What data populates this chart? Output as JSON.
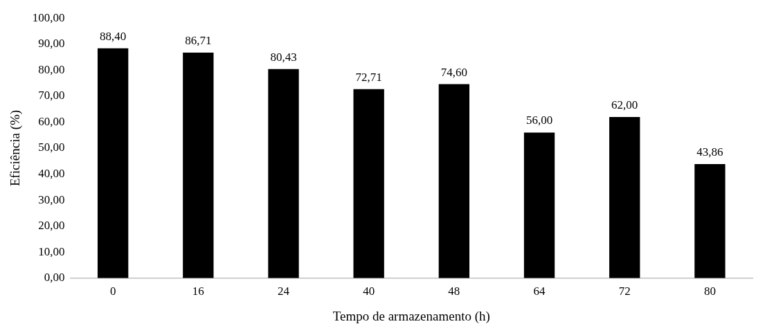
{
  "chart_data": {
    "type": "bar",
    "xlabel": "Tempo de armazenamento (h)",
    "ylabel": "Eficiência (%)",
    "categories": [
      "0",
      "16",
      "24",
      "40",
      "48",
      "64",
      "72",
      "80"
    ],
    "values": [
      88.4,
      86.71,
      80.43,
      72.71,
      74.6,
      56.0,
      62.0,
      43.86
    ],
    "value_labels": [
      "88,40",
      "86,71",
      "80,43",
      "72,71",
      "74,60",
      "56,00",
      "62,00",
      "43,86"
    ],
    "color": "#000000",
    "ylim": [
      0,
      100
    ],
    "yticks": [
      {
        "value": 0,
        "label": "0,00"
      },
      {
        "value": 10,
        "label": "10,00"
      },
      {
        "value": 20,
        "label": "20,00"
      },
      {
        "value": 30,
        "label": "30,00"
      },
      {
        "value": 40,
        "label": "40,00"
      },
      {
        "value": 50,
        "label": "50,00"
      },
      {
        "value": 60,
        "label": "60,00"
      },
      {
        "value": 70,
        "label": "70,00"
      },
      {
        "value": 80,
        "label": "80,00"
      },
      {
        "value": 90,
        "label": "90,00"
      },
      {
        "value": 100,
        "label": "100,00"
      }
    ],
    "grid": false,
    "legend": false
  }
}
